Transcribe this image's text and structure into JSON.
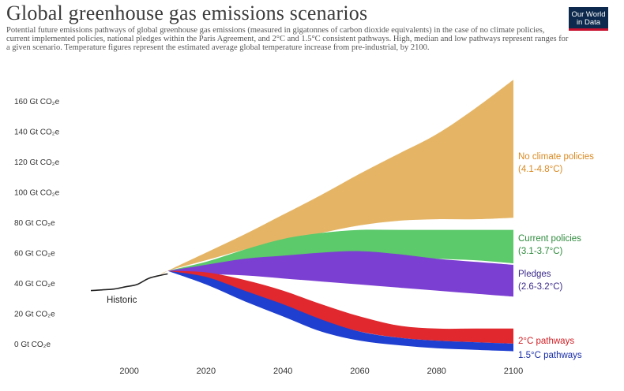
{
  "header": {
    "title": "Global greenhouse gas emissions scenarios",
    "subtitle": "Potential future emissions pathways of global greenhouse gas emissions (measured in gigatonnes of carbon dioxide equivalents) in the case of no climate policies, current implemented policies, national pledges within the Paris Agreement, and 2°C and 1.5°C consistent pathways. High, median and low pathways represent ranges for a given scenario. Temperature figures represent the estimated average global temperature increase from pre-industrial, by 2100.",
    "logo_line1": "Our World",
    "logo_line2": "in Data"
  },
  "colors": {
    "no_policies": "#e5b565",
    "current": "#5cc96b",
    "pledges": "#7b3fd1",
    "two_degree": "#e0282e",
    "one_five": "#1f3fd0",
    "historic": "#222222"
  },
  "chart_data": {
    "type": "area",
    "title": "Global greenhouse gas emissions scenarios",
    "ylabel": "Gt CO₂e",
    "xlim": [
      1990,
      2100
    ],
    "ylim": [
      0,
      160
    ],
    "y_tick_values": [
      160,
      140,
      120,
      100,
      80,
      60,
      40,
      20,
      0
    ],
    "y_tick_labels": [
      "160 Gt CO₂e",
      "140 Gt CO₂e",
      "120 Gt CO₂e",
      "100 Gt CO₂e",
      "80 Gt CO₂e",
      "60 Gt CO₂e",
      "40 Gt CO₂e",
      "20 Gt CO₂e",
      "0 Gt CO₂e"
    ],
    "x_tick_values": [
      2000,
      2020,
      2040,
      2060,
      2080,
      2100
    ],
    "x_tick_labels": [
      "2000",
      "2020",
      "2040",
      "2060",
      "2080",
      "2100"
    ],
    "historic": {
      "name": "Historic",
      "x": [
        1990,
        1993,
        1996,
        1999,
        2002,
        2005,
        2008,
        2010
      ],
      "y": [
        35,
        35.5,
        36,
        37.5,
        39,
        43,
        45,
        46
      ]
    },
    "series": [
      {
        "key": "no_policies",
        "name": "No climate policies",
        "range": "(4.1-4.8°C)",
        "x": [
          2008,
          2010,
          2020,
          2030,
          2040,
          2050,
          2060,
          2070,
          2080,
          2090,
          2100
        ],
        "high": [
          45,
          48,
          60,
          72,
          85,
          98,
          112,
          125,
          138,
          155,
          174
        ],
        "low": [
          45,
          48,
          55,
          62,
          68,
          73,
          78,
          81,
          82,
          82,
          83
        ]
      },
      {
        "key": "current",
        "name": "Current policies",
        "range": "(3.1-3.7°C)",
        "x": [
          2010,
          2020,
          2030,
          2040,
          2050,
          2060,
          2070,
          2080,
          2090,
          2100
        ],
        "high": [
          48,
          54,
          62,
          69,
          73,
          75,
          75,
          75,
          75,
          75
        ],
        "low": [
          48,
          49,
          52,
          54,
          56,
          57,
          57,
          56,
          55,
          53
        ]
      },
      {
        "key": "pledges",
        "name": "Pledges",
        "range": "(2.6-3.2°C)",
        "x": [
          2010,
          2020,
          2030,
          2040,
          2050,
          2060,
          2070,
          2080,
          2090,
          2100
        ],
        "high": [
          48,
          52,
          56,
          58,
          60,
          61,
          59,
          56,
          54,
          52
        ],
        "low": [
          48,
          46,
          45,
          43,
          41,
          39,
          37,
          35,
          33,
          31
        ]
      },
      {
        "key": "two_degree",
        "name": "2°C pathways",
        "range": "",
        "x": [
          2010,
          2020,
          2030,
          2040,
          2050,
          2060,
          2070,
          2080,
          2090,
          2100
        ],
        "high": [
          48,
          47,
          42,
          35,
          26,
          18,
          12,
          10,
          10,
          10
        ],
        "low": [
          48,
          42,
          33,
          24,
          15,
          8,
          4,
          2,
          1,
          0
        ]
      },
      {
        "key": "one_five",
        "name": "1.5°C pathways",
        "range": "",
        "x": [
          2010,
          2020,
          2030,
          2040,
          2050,
          2060,
          2070,
          2080,
          2090,
          2100
        ],
        "high": [
          48,
          44,
          35,
          26,
          16,
          8,
          4,
          2,
          1,
          0
        ],
        "low": [
          48,
          39,
          28,
          18,
          8,
          2,
          -1,
          -3,
          -4,
          -5
        ]
      }
    ]
  }
}
